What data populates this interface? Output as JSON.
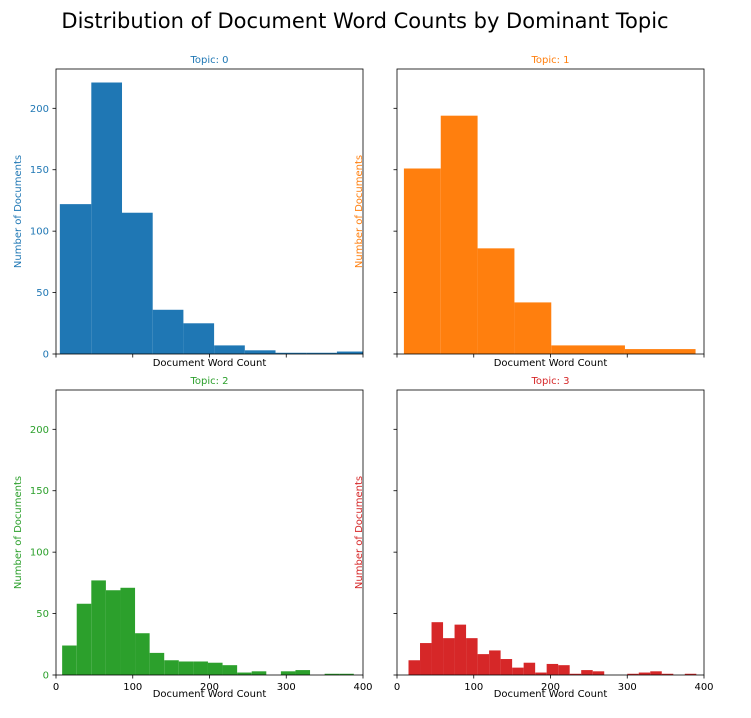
{
  "figure_title": "Distribution of Document Word Counts by Dominant Topic",
  "chart_data": [
    {
      "type": "bar",
      "title": "Topic: 0",
      "xlabel": "Document Word Count",
      "ylabel": "Number of Documents",
      "color": "#1f77b4",
      "xlim": [
        0,
        400
      ],
      "ylim": [
        0,
        232
      ],
      "xticks": [
        0,
        100,
        200,
        300,
        400
      ],
      "yticks": [
        0,
        50,
        100,
        150,
        200
      ],
      "show_xticklabels": false,
      "show_yticklabels": true,
      "bins": [
        {
          "x0": 5,
          "x1": 46,
          "value": 122
        },
        {
          "x0": 46,
          "x1": 86,
          "value": 221
        },
        {
          "x0": 86,
          "x1": 126,
          "value": 115
        },
        {
          "x0": 126,
          "x1": 166,
          "value": 36
        },
        {
          "x0": 166,
          "x1": 206,
          "value": 25
        },
        {
          "x0": 206,
          "x1": 246,
          "value": 7
        },
        {
          "x0": 246,
          "x1": 286,
          "value": 3
        },
        {
          "x0": 286,
          "x1": 326,
          "value": 1
        },
        {
          "x0": 326,
          "x1": 366,
          "value": 1
        },
        {
          "x0": 366,
          "x1": 406,
          "value": 2
        }
      ]
    },
    {
      "type": "bar",
      "title": "Topic: 1",
      "xlabel": "Document Word Count",
      "ylabel": "Number of Documents",
      "color": "#ff7f0e",
      "xlim": [
        0,
        400
      ],
      "ylim": [
        0,
        232
      ],
      "xticks": [
        0,
        100,
        200,
        300,
        400
      ],
      "yticks": [
        0,
        50,
        100,
        150,
        200
      ],
      "show_xticklabels": false,
      "show_yticklabels": false,
      "bins": [
        {
          "x0": 9,
          "x1": 57,
          "value": 151
        },
        {
          "x0": 57,
          "x1": 105,
          "value": 194
        },
        {
          "x0": 105,
          "x1": 153,
          "value": 86
        },
        {
          "x0": 153,
          "x1": 201,
          "value": 42
        },
        {
          "x0": 201,
          "x1": 297,
          "value": 7
        },
        {
          "x0": 297,
          "x1": 389,
          "value": 4
        }
      ]
    },
    {
      "type": "bar",
      "title": "Topic: 2",
      "xlabel": "Document Word Count",
      "ylabel": "Number of Documents",
      "color": "#2ca02c",
      "xlim": [
        0,
        400
      ],
      "ylim": [
        0,
        232
      ],
      "xticks": [
        0,
        100,
        200,
        300,
        400
      ],
      "yticks": [
        0,
        50,
        100,
        150,
        200
      ],
      "show_xticklabels": true,
      "show_yticklabels": true,
      "bins": [
        {
          "x0": 8,
          "x1": 27,
          "value": 24
        },
        {
          "x0": 27,
          "x1": 46,
          "value": 58
        },
        {
          "x0": 46,
          "x1": 65,
          "value": 77
        },
        {
          "x0": 65,
          "x1": 84,
          "value": 69
        },
        {
          "x0": 84,
          "x1": 103,
          "value": 71
        },
        {
          "x0": 103,
          "x1": 122,
          "value": 34
        },
        {
          "x0": 122,
          "x1": 141,
          "value": 18
        },
        {
          "x0": 141,
          "x1": 160,
          "value": 12
        },
        {
          "x0": 160,
          "x1": 179,
          "value": 11
        },
        {
          "x0": 179,
          "x1": 198,
          "value": 11
        },
        {
          "x0": 198,
          "x1": 217,
          "value": 10
        },
        {
          "x0": 217,
          "x1": 236,
          "value": 8
        },
        {
          "x0": 236,
          "x1": 255,
          "value": 2
        },
        {
          "x0": 255,
          "x1": 274,
          "value": 3
        },
        {
          "x0": 274,
          "x1": 293,
          "value": 0
        },
        {
          "x0": 293,
          "x1": 312,
          "value": 3
        },
        {
          "x0": 312,
          "x1": 331,
          "value": 4
        },
        {
          "x0": 331,
          "x1": 350,
          "value": 0
        },
        {
          "x0": 350,
          "x1": 369,
          "value": 1
        },
        {
          "x0": 369,
          "x1": 388,
          "value": 1
        }
      ]
    },
    {
      "type": "bar",
      "title": "Topic: 3",
      "xlabel": "Document Word Count",
      "ylabel": "Number of Documents",
      "color": "#d62728",
      "xlim": [
        0,
        400
      ],
      "ylim": [
        0,
        232
      ],
      "xticks": [
        0,
        100,
        200,
        300,
        400
      ],
      "yticks": [
        0,
        50,
        100,
        150,
        200
      ],
      "show_xticklabels": true,
      "show_yticklabels": false,
      "bins": [
        {
          "x0": 15,
          "x1": 30,
          "value": 12
        },
        {
          "x0": 30,
          "x1": 45,
          "value": 26
        },
        {
          "x0": 45,
          "x1": 60,
          "value": 43
        },
        {
          "x0": 60,
          "x1": 75,
          "value": 30
        },
        {
          "x0": 75,
          "x1": 90,
          "value": 41
        },
        {
          "x0": 90,
          "x1": 105,
          "value": 30
        },
        {
          "x0": 105,
          "x1": 120,
          "value": 17
        },
        {
          "x0": 120,
          "x1": 135,
          "value": 20
        },
        {
          "x0": 135,
          "x1": 150,
          "value": 13
        },
        {
          "x0": 150,
          "x1": 165,
          "value": 6
        },
        {
          "x0": 165,
          "x1": 180,
          "value": 10
        },
        {
          "x0": 180,
          "x1": 195,
          "value": 2
        },
        {
          "x0": 195,
          "x1": 210,
          "value": 9
        },
        {
          "x0": 210,
          "x1": 225,
          "value": 8
        },
        {
          "x0": 225,
          "x1": 240,
          "value": 1
        },
        {
          "x0": 240,
          "x1": 255,
          "value": 4
        },
        {
          "x0": 255,
          "x1": 270,
          "value": 3
        },
        {
          "x0": 270,
          "x1": 285,
          "value": 0
        },
        {
          "x0": 285,
          "x1": 300,
          "value": 0
        },
        {
          "x0": 300,
          "x1": 315,
          "value": 1
        },
        {
          "x0": 315,
          "x1": 330,
          "value": 2
        },
        {
          "x0": 330,
          "x1": 345,
          "value": 3
        },
        {
          "x0": 345,
          "x1": 360,
          "value": 1
        },
        {
          "x0": 360,
          "x1": 375,
          "value": 0
        },
        {
          "x0": 375,
          "x1": 390,
          "value": 1
        }
      ]
    }
  ]
}
